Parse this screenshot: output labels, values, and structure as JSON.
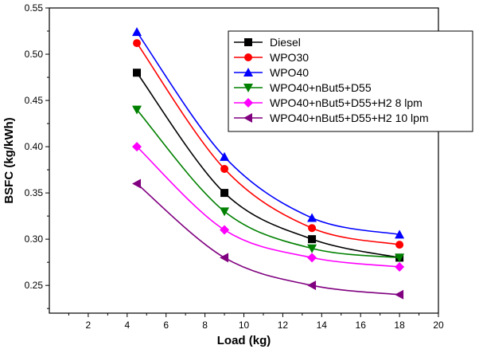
{
  "chart_data": {
    "type": "line",
    "xlabel": "Load (kg)",
    "ylabel": "BSFC (kg/kWh)",
    "xlim": [
      0,
      20
    ],
    "ylim": [
      0.22,
      0.55
    ],
    "x_ticks": [
      "2",
      "4",
      "6",
      "8",
      "10",
      "12",
      "14",
      "16",
      "18",
      "20"
    ],
    "y_ticks": [
      "0.25",
      "0.30",
      "0.35",
      "0.40",
      "0.45",
      "0.50",
      "0.55"
    ],
    "grid": false,
    "legend_position": "top-right",
    "x": [
      4.5,
      9,
      13.5,
      18
    ],
    "series": [
      {
        "name": "Diesel",
        "color": "#000000",
        "marker": "square",
        "values": [
          0.48,
          0.35,
          0.3,
          0.28
        ]
      },
      {
        "name": "WPO30",
        "color": "#ff0000",
        "marker": "circle",
        "values": [
          0.512,
          0.376,
          0.312,
          0.294
        ]
      },
      {
        "name": "WPO40",
        "color": "#0000ff",
        "marker": "triangle-up",
        "values": [
          0.524,
          0.389,
          0.323,
          0.305
        ]
      },
      {
        "name": "WPO40+nBut5+D55",
        "color": "#008000",
        "marker": "triangle-down",
        "values": [
          0.44,
          0.33,
          0.29,
          0.28
        ]
      },
      {
        "name": "WPO40+nBut5+D55+H2 8 lpm",
        "color": "#ff00ff",
        "marker": "diamond",
        "values": [
          0.4,
          0.31,
          0.28,
          0.27
        ]
      },
      {
        "name": "WPO40+nBut5+D55+H2 10 lpm",
        "color": "#800080",
        "marker": "triangle-left",
        "values": [
          0.36,
          0.28,
          0.25,
          0.24
        ]
      }
    ]
  }
}
